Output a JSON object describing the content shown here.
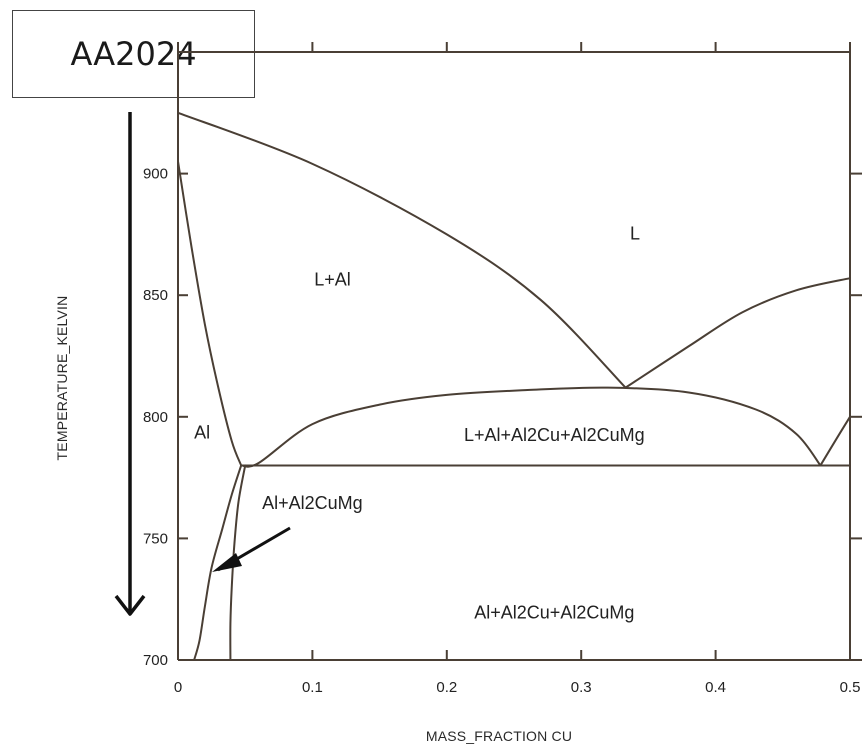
{
  "chart_data": {
    "type": "phase-diagram",
    "title": "AA2024",
    "xlabel": "MASS_FRACTION CU",
    "ylabel": "TEMPERATURE_KELVIN",
    "xlim": [
      0,
      0.5
    ],
    "ylim": [
      700,
      950
    ],
    "x_ticks": [
      "0",
      "0.1",
      "0.2",
      "0.3",
      "0.4",
      "0.5"
    ],
    "y_ticks": [
      "700",
      "750",
      "800",
      "850",
      "900"
    ],
    "x_tick_values": [
      0,
      0.1,
      0.2,
      0.3,
      0.4,
      0.5
    ],
    "y_tick_values": [
      700,
      750,
      800,
      850,
      900
    ],
    "region_labels": [
      {
        "text": "L",
        "x": 0.34,
        "y": 873
      },
      {
        "text": "L+Al",
        "x": 0.115,
        "y": 854
      },
      {
        "text": "Al",
        "x": 0.018,
        "y": 791
      },
      {
        "text": "L+Al+Al2Cu+Al2CuMg",
        "x": 0.28,
        "y": 790
      },
      {
        "text": "Al+Al2CuMg",
        "x": 0.1,
        "y": 762
      },
      {
        "text": "Al+Al2Cu+Al2CuMg",
        "x": 0.28,
        "y": 717
      }
    ],
    "boundaries": [
      {
        "name": "liquidus-al",
        "points": [
          [
            0,
            925
          ],
          [
            0.1,
            904
          ],
          [
            0.2,
            875
          ],
          [
            0.27,
            848
          ],
          [
            0.333,
            812
          ]
        ]
      },
      {
        "name": "liquidus-al2cu",
        "points": [
          [
            0.333,
            812
          ],
          [
            0.38,
            829
          ],
          [
            0.42,
            843
          ],
          [
            0.46,
            852
          ],
          [
            0.5,
            857
          ]
        ]
      },
      {
        "name": "solidus",
        "points": [
          [
            0,
            905
          ],
          [
            0.01,
            870
          ],
          [
            0.02,
            838
          ],
          [
            0.03,
            812
          ],
          [
            0.04,
            790
          ],
          [
            0.047,
            780
          ]
        ]
      },
      {
        "name": "l-al2cumg-dome",
        "points": [
          [
            0.047,
            780
          ],
          [
            0.06,
            781
          ],
          [
            0.1,
            797
          ],
          [
            0.15,
            805
          ],
          [
            0.2,
            809
          ],
          [
            0.26,
            811
          ],
          [
            0.32,
            812
          ],
          [
            0.38,
            810
          ],
          [
            0.43,
            803
          ],
          [
            0.46,
            793
          ],
          [
            0.478,
            780
          ]
        ]
      },
      {
        "name": "eutectic-right",
        "points": [
          [
            0.478,
            780
          ],
          [
            0.49,
            791
          ],
          [
            0.5,
            800
          ]
        ]
      },
      {
        "name": "invariant-isotherm",
        "points": [
          [
            0.047,
            780
          ],
          [
            0.5,
            780
          ]
        ]
      },
      {
        "name": "solvus-inner",
        "points": [
          [
            0.047,
            780
          ],
          [
            0.04,
            768
          ],
          [
            0.033,
            754
          ],
          [
            0.025,
            738
          ],
          [
            0.02,
            722
          ],
          [
            0.016,
            708
          ],
          [
            0.012,
            700
          ]
        ]
      },
      {
        "name": "solvus-outer",
        "points": [
          [
            0.05,
            780
          ],
          [
            0.045,
            765
          ],
          [
            0.042,
            748
          ],
          [
            0.04,
            730
          ],
          [
            0.039,
            715
          ],
          [
            0.039,
            700
          ]
        ]
      }
    ],
    "grid": false,
    "legend": "none"
  }
}
